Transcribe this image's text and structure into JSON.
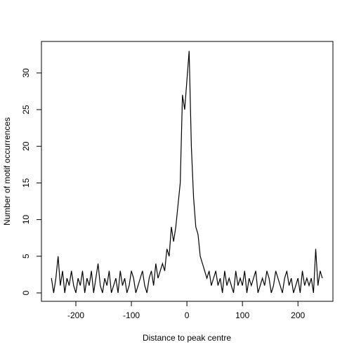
{
  "chart_data": {
    "type": "line",
    "x_label": "Distance to peak centre",
    "y_label": "Number of motif occurrences",
    "color": "#000000",
    "xlim": [
      -262,
      263
    ],
    "ylim": [
      -1.15,
      34.3
    ],
    "xticks": [
      -200,
      -100,
      0,
      100,
      200
    ],
    "yticks": [
      0,
      5,
      10,
      15,
      20,
      25,
      30
    ],
    "x": [
      -244,
      -240,
      -236,
      -232,
      -228,
      -224,
      -220,
      -216,
      -212,
      -208,
      -204,
      -200,
      -196,
      -192,
      -188,
      -184,
      -180,
      -176,
      -172,
      -168,
      -164,
      -160,
      -156,
      -152,
      -148,
      -144,
      -140,
      -136,
      -132,
      -128,
      -124,
      -120,
      -116,
      -112,
      -108,
      -104,
      -100,
      -96,
      -92,
      -88,
      -84,
      -80,
      -76,
      -72,
      -68,
      -64,
      -60,
      -56,
      -52,
      -48,
      -44,
      -40,
      -36,
      -32,
      -28,
      -24,
      -20,
      -16,
      -12,
      -8,
      -4,
      0,
      4,
      8,
      12,
      16,
      20,
      24,
      28,
      32,
      36,
      40,
      44,
      48,
      52,
      56,
      60,
      64,
      68,
      72,
      76,
      80,
      84,
      88,
      92,
      96,
      100,
      104,
      108,
      112,
      116,
      120,
      124,
      128,
      132,
      136,
      140,
      144,
      148,
      152,
      156,
      160,
      164,
      168,
      172,
      176,
      180,
      184,
      188,
      192,
      196,
      200,
      204,
      208,
      212,
      216,
      220,
      224,
      228,
      232,
      236,
      240,
      244
    ],
    "values": [
      2,
      0,
      2,
      5,
      1,
      3,
      0,
      2,
      1,
      3,
      1,
      0,
      2,
      1,
      3,
      0,
      2,
      1,
      3,
      0,
      2,
      4,
      1,
      0,
      2,
      1,
      3,
      0,
      1,
      2,
      0,
      3,
      1,
      2,
      0,
      1,
      3,
      2,
      0,
      1,
      2,
      3,
      1,
      0,
      2,
      3,
      1,
      4,
      2,
      3,
      4,
      3,
      6,
      5,
      9,
      7,
      9,
      12,
      15,
      27,
      25,
      29,
      33,
      20,
      13,
      9,
      8,
      5,
      4,
      3,
      2,
      3,
      1,
      2,
      3,
      1,
      2,
      0,
      3,
      1,
      2,
      1,
      0,
      3,
      1,
      2,
      1,
      3,
      0,
      2,
      1,
      2,
      3,
      0,
      1,
      2,
      1,
      3,
      2,
      0,
      1,
      3,
      2,
      1,
      0,
      2,
      3,
      1,
      2,
      0,
      1,
      2,
      0,
      3,
      1,
      2,
      1,
      2,
      0,
      6,
      1,
      3,
      2
    ]
  }
}
